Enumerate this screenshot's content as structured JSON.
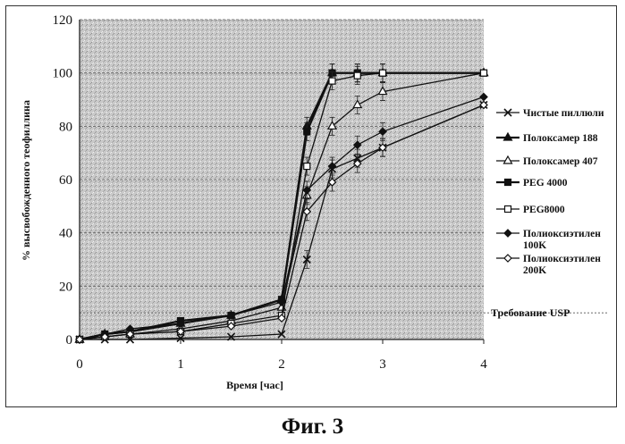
{
  "chart_data": {
    "type": "line",
    "title": "",
    "xlabel": "Время [час]",
    "ylabel": "% высвобожденного теофиллина",
    "xlim": [
      0,
      4
    ],
    "ylim": [
      0,
      120
    ],
    "x_ticks": [
      0,
      1,
      2,
      3,
      4
    ],
    "y_ticks": [
      0,
      20,
      40,
      60,
      80,
      100,
      120
    ],
    "grid": true,
    "legend_position": "right",
    "x": [
      0,
      0.25,
      0.5,
      1,
      1.5,
      2,
      2.25,
      2.5,
      2.75,
      3,
      4
    ],
    "series": [
      {
        "name": "Чистые пиллюли",
        "marker": "x",
        "values": [
          0,
          0,
          0,
          0.5,
          1,
          2,
          30,
          64,
          68,
          72,
          88
        ]
      },
      {
        "name": "Полоксамер 188",
        "marker": "filled-triangle",
        "values": [
          0,
          2,
          3,
          6,
          9,
          15,
          80,
          100,
          100,
          100,
          100
        ]
      },
      {
        "name": "Полоксамер 407",
        "marker": "open-triangle",
        "values": [
          0,
          1,
          2,
          4,
          7,
          12,
          54,
          80,
          88,
          93,
          100
        ]
      },
      {
        "name": "PEG 4000",
        "marker": "filled-square",
        "values": [
          0,
          2,
          3,
          7,
          9,
          15,
          78,
          100,
          100,
          100,
          100
        ]
      },
      {
        "name": "PEG8000",
        "marker": "open-square",
        "values": [
          0,
          1,
          2,
          3,
          6,
          9,
          65,
          97,
          99,
          100,
          100
        ]
      },
      {
        "name": "Полиоксиэтилен 100K",
        "marker": "filled-diamond",
        "values": [
          0,
          2,
          4,
          6,
          9,
          14,
          56,
          65,
          73,
          78,
          91
        ]
      },
      {
        "name": "Полиоксиэтилен 200K",
        "marker": "open-diamond",
        "values": [
          0,
          1,
          2,
          3,
          5,
          8,
          48,
          59,
          66,
          72,
          88
        ]
      }
    ],
    "legend_labels": [
      [
        "Чистые пиллюли"
      ],
      [
        "Полоксамер 188"
      ],
      [
        "Полоксамер 407"
      ],
      [
        "PEG 4000"
      ],
      [
        "PEG8000"
      ],
      [
        "Полиоксиэтилен",
        "100K"
      ],
      [
        "Полиоксиэтилен",
        "200K"
      ]
    ],
    "annotations": [
      {
        "text": "Требование USP",
        "y": 10
      }
    ]
  },
  "caption": "Фиг. 3"
}
